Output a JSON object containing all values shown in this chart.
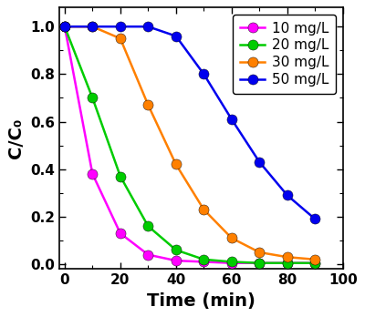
{
  "series": [
    {
      "label": "10 mg/L",
      "color": "#ff00ff",
      "x": [
        0,
        10,
        20,
        30,
        40,
        50,
        60,
        70,
        80,
        90
      ],
      "y": [
        1.0,
        0.38,
        0.13,
        0.04,
        0.015,
        0.01,
        0.005,
        0.005,
        0.005,
        0.005
      ]
    },
    {
      "label": "20 mg/L",
      "color": "#00cc00",
      "x": [
        0,
        10,
        20,
        30,
        40,
        50,
        60,
        70,
        80,
        90
      ],
      "y": [
        1.0,
        0.7,
        0.37,
        0.16,
        0.06,
        0.02,
        0.01,
        0.005,
        0.005,
        0.005
      ]
    },
    {
      "label": "30 mg/L",
      "color": "#ff8000",
      "x": [
        0,
        10,
        20,
        30,
        40,
        50,
        60,
        70,
        80,
        90
      ],
      "y": [
        1.0,
        1.0,
        0.95,
        0.67,
        0.42,
        0.23,
        0.11,
        0.05,
        0.03,
        0.02
      ]
    },
    {
      "label": "50 mg/L",
      "color": "#0000ee",
      "x": [
        0,
        10,
        20,
        30,
        40,
        50,
        60,
        70,
        80,
        90
      ],
      "y": [
        1.0,
        1.0,
        1.0,
        1.0,
        0.96,
        0.8,
        0.61,
        0.43,
        0.29,
        0.19
      ]
    }
  ],
  "xlabel": "Time (min)",
  "ylabel": "C/C₀",
  "xlim": [
    -2,
    100
  ],
  "ylim": [
    -0.02,
    1.08
  ],
  "xticks": [
    0,
    20,
    40,
    60,
    80,
    100
  ],
  "yticks": [
    0.0,
    0.2,
    0.4,
    0.6,
    0.8,
    1.0
  ],
  "legend_loc": "upper right",
  "marker": "o",
  "markersize": 8,
  "linewidth": 1.8,
  "background_color": "#ffffff",
  "xlabel_fontsize": 14,
  "ylabel_fontsize": 14,
  "tick_labelsize": 11,
  "legend_fontsize": 11
}
